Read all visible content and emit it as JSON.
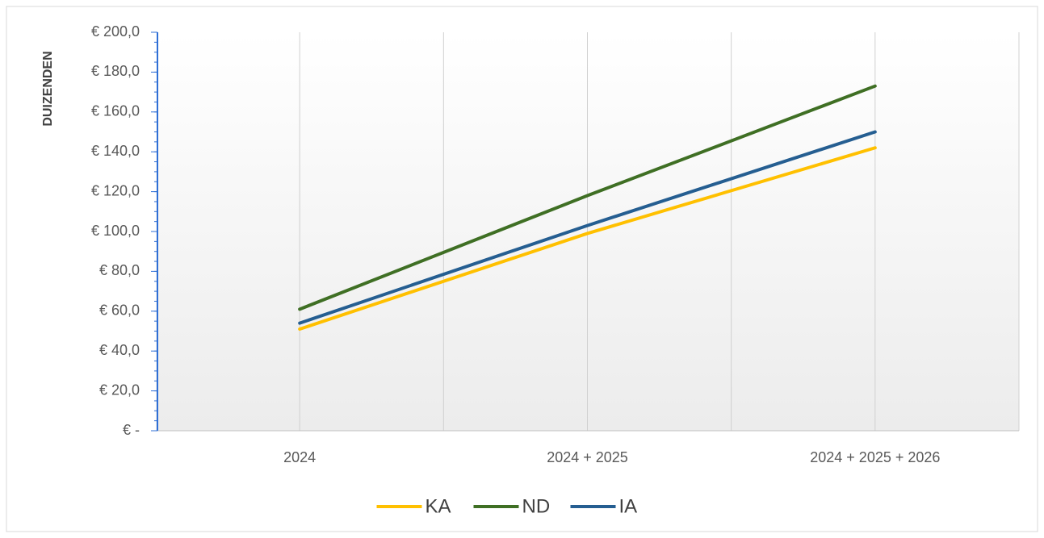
{
  "chart_data": {
    "type": "line",
    "y_label": "DUIZENDEN",
    "categories": [
      "2024",
      "2024 + 2025",
      "2024 + 2025 + 2026"
    ],
    "series": [
      {
        "name": "KA",
        "color": "#ffc000",
        "values": [
          51,
          99,
          142
        ]
      },
      {
        "name": "ND",
        "color": "#3f6f24",
        "values": [
          61,
          118,
          173
        ]
      },
      {
        "name": "IA",
        "color": "#255e91",
        "values": [
          54,
          103,
          150
        ]
      }
    ],
    "ylim": [
      0,
      200
    ],
    "yticks": [
      {
        "value": 0,
        "label": "€ -"
      },
      {
        "value": 20,
        "label": "€ 20,0"
      },
      {
        "value": 40,
        "label": "€ 40,0"
      },
      {
        "value": 60,
        "label": "€ 60,0"
      },
      {
        "value": 80,
        "label": "€ 80,0"
      },
      {
        "value": 100,
        "label": "€ 100,0"
      },
      {
        "value": 120,
        "label": "€ 120,0"
      },
      {
        "value": 140,
        "label": "€ 140,0"
      },
      {
        "value": 160,
        "label": "€ 160,0"
      },
      {
        "value": 180,
        "label": "€ 180,0"
      },
      {
        "value": 200,
        "label": "€ 200,0"
      }
    ],
    "grid": "x",
    "legend": "bottom"
  }
}
